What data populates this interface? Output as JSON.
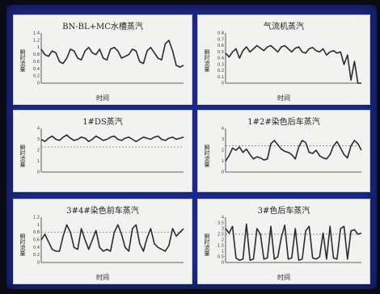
{
  "panels": [
    {
      "title": "BN-BL+MC水槽蒸汽",
      "ylabel": "瞬时流量",
      "xlabel": "时间",
      "yticks": [
        "1.4",
        "1.2",
        "1",
        "0.8",
        "0.6",
        "0.4",
        "0.2",
        "0"
      ],
      "ymax": 1.4,
      "baseline": null,
      "values": [
        0.95,
        0.8,
        0.75,
        0.9,
        0.85,
        0.6,
        0.55,
        0.7,
        0.95,
        0.9,
        0.7,
        0.65,
        0.9,
        1.0,
        0.85,
        0.8,
        0.95,
        0.7,
        0.65,
        0.95,
        1.0,
        0.9,
        0.7,
        0.75,
        0.8,
        0.95,
        0.9,
        0.6,
        0.55,
        0.9,
        1.0,
        0.85,
        0.7,
        0.65,
        1.1,
        1.2,
        0.9,
        0.5,
        0.45,
        0.5
      ]
    },
    {
      "title": "气流机蒸汽",
      "ylabel": "瞬时流量",
      "xlabel": "时间",
      "yticks": [
        "0.8",
        "0.7",
        "0.6",
        "0.5",
        "0.4",
        "0.3",
        "0.2",
        "0.1",
        "0"
      ],
      "ymax": 0.8,
      "baseline": null,
      "values": [
        0.48,
        0.42,
        0.5,
        0.55,
        0.4,
        0.52,
        0.58,
        0.5,
        0.55,
        0.6,
        0.56,
        0.52,
        0.58,
        0.6,
        0.55,
        0.5,
        0.58,
        0.6,
        0.55,
        0.5,
        0.56,
        0.58,
        0.5,
        0.48,
        0.55,
        0.57,
        0.52,
        0.5,
        0.55,
        0.45,
        0.5,
        0.52,
        0.48,
        0.5,
        0.3,
        0.45,
        0.05,
        0.35,
        0.0,
        0.0
      ]
    },
    {
      "title": "1#DS蒸汽",
      "ylabel": "瞬时流量",
      "xlabel": "",
      "yticks": [
        "4",
        "3",
        "2",
        "1",
        "0"
      ],
      "ymax": 4,
      "baseline": 2.3,
      "values": [
        3.0,
        2.8,
        3.1,
        3.3,
        3.0,
        2.9,
        3.2,
        3.4,
        3.1,
        2.9,
        3.0,
        3.2,
        3.1,
        2.8,
        3.0,
        3.3,
        3.1,
        2.9,
        3.0,
        3.2,
        3.3,
        3.0,
        2.9,
        3.1,
        3.2,
        3.0,
        2.8,
        3.0,
        3.2,
        3.1,
        3.0,
        3.2,
        3.3,
        3.0,
        2.9,
        3.1,
        3.2,
        3.0,
        3.1,
        3.2
      ]
    },
    {
      "title": "1#2#染色后车蒸汽",
      "ylabel": "瞬时流量",
      "xlabel": "",
      "yticks": [
        "4",
        "3",
        "2",
        "1",
        "0"
      ],
      "ymax": 4,
      "baseline": 2.4,
      "values": [
        1.0,
        1.5,
        2.2,
        2.0,
        2.3,
        1.8,
        2.1,
        1.6,
        1.2,
        1.4,
        1.3,
        1.1,
        1.2,
        2.6,
        2.9,
        2.5,
        2.1,
        1.9,
        1.8,
        1.6,
        1.2,
        2.3,
        2.9,
        2.7,
        1.8,
        1.7,
        2.0,
        1.5,
        1.3,
        1.2,
        1.6,
        2.4,
        2.8,
        2.2,
        1.6,
        1.3,
        2.4,
        2.9,
        2.6,
        2.0
      ]
    },
    {
      "title": "3#4#染色前车蒸汽",
      "ylabel": "瞬时流量",
      "xlabel": "时间",
      "yticks": [
        "1.2",
        "1",
        "0.8",
        "0.6",
        "0.4",
        "0.2",
        "0"
      ],
      "ymax": 1.2,
      "baseline": 0.8,
      "values": [
        0.6,
        0.75,
        0.55,
        0.35,
        0.3,
        0.3,
        0.7,
        1.0,
        0.8,
        0.4,
        0.35,
        0.9,
        0.6,
        0.35,
        0.6,
        0.85,
        0.4,
        0.3,
        0.35,
        0.3,
        0.8,
        1.0,
        0.75,
        0.4,
        0.3,
        0.9,
        1.0,
        0.5,
        0.3,
        0.65,
        0.9,
        0.5,
        0.4,
        0.35,
        0.3,
        0.45,
        0.9,
        0.7,
        0.8,
        0.9
      ]
    },
    {
      "title": "3#色后车蒸汽",
      "ylabel": "瞬时流量",
      "xlabel": "时间",
      "yticks": [
        "4",
        "3.5",
        "3",
        "2.5",
        "2",
        "1.5",
        "1",
        "0.5",
        "0"
      ],
      "ymax": 4,
      "baseline": 2.5,
      "values": [
        3.0,
        2.6,
        3.2,
        0.4,
        0.2,
        0.3,
        3.4,
        0.2,
        0.3,
        3.0,
        2.5,
        0.3,
        0.4,
        3.2,
        0.3,
        0.5,
        2.2,
        3.3,
        0.3,
        0.4,
        3.0,
        0.2,
        0.3,
        2.8,
        3.2,
        0.4,
        0.3,
        0.5,
        2.6,
        0.3,
        3.2,
        0.4,
        0.3,
        3.0,
        3.2,
        0.3,
        2.8,
        2.9,
        2.5,
        2.6
      ]
    }
  ]
}
